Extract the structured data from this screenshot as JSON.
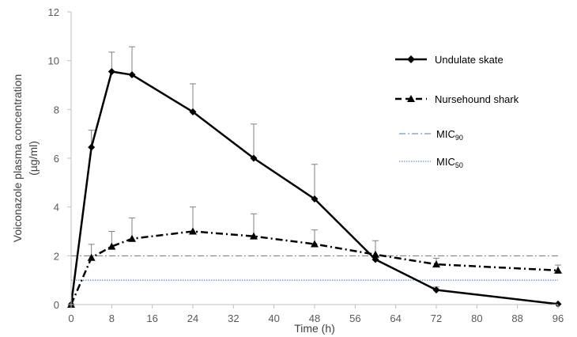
{
  "chart_data": {
    "type": "line",
    "title": "",
    "xlabel": "Time (h)",
    "ylabel_line1": "Voiconazole plasma concentration",
    "ylabel_line2": "(µg/ml)",
    "xlim": [
      0,
      96
    ],
    "ylim": [
      0,
      12
    ],
    "x_ticks": [
      0,
      8,
      16,
      24,
      32,
      40,
      48,
      56,
      64,
      72,
      80,
      88,
      96
    ],
    "y_ticks": [
      0,
      2,
      4,
      6,
      8,
      10,
      12
    ],
    "x_tick_labels": [
      "0",
      "8",
      "16",
      "24",
      "32",
      "40",
      "48",
      "56",
      "64",
      "72",
      "80",
      "88",
      "96"
    ],
    "y_tick_labels": [
      "0",
      "2",
      "4",
      "6",
      "8",
      "10",
      "12"
    ],
    "grid": false,
    "legend_position": "right",
    "series": [
      {
        "name": "Undulate skate",
        "line": "solid",
        "marker": "diamond",
        "color": "#000000",
        "x": [
          0,
          4,
          8,
          12,
          24,
          36,
          48,
          60,
          72,
          96
        ],
        "values": [
          0,
          6.45,
          9.55,
          9.42,
          7.9,
          6.0,
          4.33,
          1.85,
          0.6,
          0.02
        ],
        "error_upper": [
          0,
          0.7,
          0.8,
          1.15,
          1.15,
          1.4,
          1.42,
          0.77,
          0.12,
          0
        ]
      },
      {
        "name": "Nursehound shark",
        "line": "dash-dot",
        "marker": "triangle",
        "color": "#000000",
        "x": [
          0,
          4,
          8,
          12,
          24,
          36,
          48,
          60,
          72,
          96
        ],
        "values": [
          0,
          1.92,
          2.38,
          2.7,
          3.0,
          2.8,
          2.48,
          2.05,
          1.65,
          1.4
        ],
        "error_upper": [
          0,
          0.55,
          0.62,
          0.85,
          1.0,
          0.92,
          0.58,
          0,
          0.25,
          0.22
        ]
      },
      {
        "name": "MIC",
        "name_sub": "90",
        "line": "dash-dot",
        "marker": "none",
        "color": "#4a7ebb",
        "constant": 2.0
      },
      {
        "name": "MIC",
        "name_sub": "50",
        "line": "dotted",
        "marker": "none",
        "color": "#4472c4",
        "constant": 1.0
      }
    ]
  }
}
